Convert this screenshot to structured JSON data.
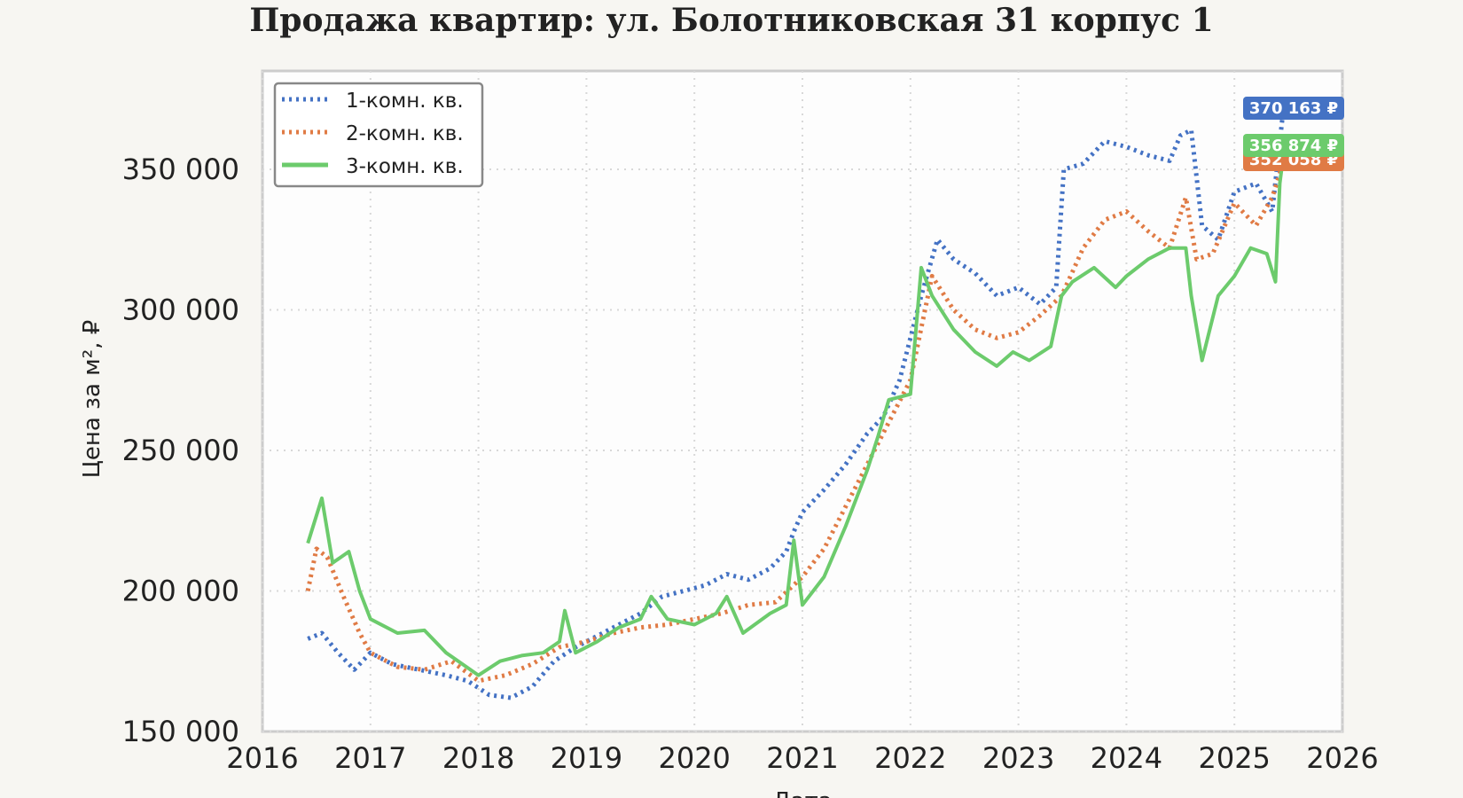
{
  "chart_data": {
    "type": "line",
    "title": "Продажа квартир: ул. Болотниковская 31 корпус 1",
    "xlabel": "Дата",
    "ylabel": "Цена за м², ₽",
    "xlim": [
      2016,
      2026
    ],
    "ylim": [
      150000,
      385000
    ],
    "x_ticks": [
      "2016",
      "2017",
      "2018",
      "2019",
      "2020",
      "2021",
      "2022",
      "2023",
      "2024",
      "2025",
      "2026"
    ],
    "y_ticks": [
      "150 000",
      "200 000",
      "250 000",
      "300 000",
      "350 000"
    ],
    "y_tick_values": [
      150000,
      200000,
      250000,
      300000,
      350000
    ],
    "grid": true,
    "legend_position": "top-left",
    "series": [
      {
        "name": "1-комн. кв.",
        "color": "#4472c4",
        "style": "dotted",
        "last_value_label": "370 163 ₽",
        "x": [
          2016.42,
          2016.55,
          2016.7,
          2016.85,
          2017.0,
          2017.2,
          2017.45,
          2017.7,
          2017.9,
          2018.1,
          2018.3,
          2018.5,
          2018.7,
          2018.9,
          2019.1,
          2019.3,
          2019.5,
          2019.7,
          2019.9,
          2020.1,
          2020.3,
          2020.5,
          2020.7,
          2020.85,
          2020.93,
          2021.0,
          2021.2,
          2021.4,
          2021.6,
          2021.75,
          2021.9,
          2022.0,
          2022.1,
          2022.25,
          2022.4,
          2022.6,
          2022.8,
          2023.0,
          2023.2,
          2023.35,
          2023.42,
          2023.6,
          2023.8,
          2024.0,
          2024.2,
          2024.4,
          2024.5,
          2024.6,
          2024.7,
          2024.85,
          2025.0,
          2025.2,
          2025.35,
          2025.45
        ],
        "values": [
          183000,
          185000,
          178000,
          172000,
          178000,
          174000,
          172000,
          170000,
          168000,
          163000,
          162000,
          166000,
          175000,
          180000,
          184000,
          188000,
          192000,
          198000,
          200000,
          202000,
          206000,
          204000,
          208000,
          214000,
          222000,
          228000,
          236000,
          245000,
          256000,
          262000,
          275000,
          290000,
          305000,
          325000,
          318000,
          313000,
          305000,
          308000,
          302000,
          308000,
          350000,
          352000,
          360000,
          358000,
          355000,
          353000,
          362000,
          364000,
          330000,
          325000,
          342000,
          345000,
          335000,
          370163
        ]
      },
      {
        "name": "2-комн. кв.",
        "color": "#e07b45",
        "style": "dotted",
        "last_value_label": "352 058 ₽",
        "x": [
          2016.42,
          2016.5,
          2016.6,
          2016.75,
          2016.9,
          2017.0,
          2017.25,
          2017.5,
          2017.75,
          2018.0,
          2018.25,
          2018.5,
          2018.75,
          2019.0,
          2019.25,
          2019.5,
          2019.75,
          2020.0,
          2020.25,
          2020.5,
          2020.75,
          2021.0,
          2021.2,
          2021.4,
          2021.6,
          2021.8,
          2022.0,
          2022.2,
          2022.4,
          2022.6,
          2022.8,
          2023.0,
          2023.2,
          2023.4,
          2023.6,
          2023.8,
          2024.0,
          2024.2,
          2024.4,
          2024.55,
          2024.65,
          2024.8,
          2025.0,
          2025.2,
          2025.35,
          2025.45
        ],
        "values": [
          200000,
          215000,
          212000,
          198000,
          185000,
          178000,
          173000,
          172000,
          175000,
          168000,
          170000,
          174000,
          180000,
          182000,
          185000,
          187000,
          188000,
          190000,
          192000,
          195000,
          196000,
          205000,
          215000,
          230000,
          245000,
          260000,
          275000,
          312000,
          300000,
          293000,
          290000,
          292000,
          298000,
          305000,
          322000,
          332000,
          335000,
          328000,
          322000,
          340000,
          318000,
          320000,
          338000,
          330000,
          340000,
          352058
        ]
      },
      {
        "name": "3-комн. кв.",
        "color": "#6ccb6c",
        "style": "solid",
        "last_value_label": "356 874 ₽",
        "x": [
          2016.42,
          2016.55,
          2016.65,
          2016.8,
          2016.9,
          2017.0,
          2017.25,
          2017.5,
          2017.7,
          2018.0,
          2018.2,
          2018.4,
          2018.6,
          2018.75,
          2018.8,
          2018.9,
          2019.1,
          2019.3,
          2019.5,
          2019.6,
          2019.75,
          2020.0,
          2020.2,
          2020.3,
          2020.45,
          2020.7,
          2020.85,
          2020.92,
          2021.0,
          2021.2,
          2021.4,
          2021.6,
          2021.7,
          2021.8,
          2022.0,
          2022.1,
          2022.2,
          2022.4,
          2022.6,
          2022.8,
          2022.95,
          2023.1,
          2023.3,
          2023.4,
          2023.5,
          2023.7,
          2023.9,
          2024.0,
          2024.2,
          2024.4,
          2024.55,
          2024.6,
          2024.7,
          2024.85,
          2025.0,
          2025.15,
          2025.3,
          2025.38,
          2025.42,
          2025.46
        ],
        "values": [
          217000,
          233000,
          210000,
          214000,
          200000,
          190000,
          185000,
          186000,
          178000,
          170000,
          175000,
          177000,
          178000,
          182000,
          193000,
          178000,
          182000,
          187000,
          190000,
          198000,
          190000,
          188000,
          192000,
          198000,
          185000,
          192000,
          195000,
          218000,
          195000,
          205000,
          223000,
          243000,
          255000,
          268000,
          270000,
          315000,
          305000,
          293000,
          285000,
          280000,
          285000,
          282000,
          287000,
          305000,
          310000,
          315000,
          308000,
          312000,
          318000,
          322000,
          322000,
          305000,
          282000,
          305000,
          312000,
          322000,
          320000,
          310000,
          345000,
          356874
        ]
      }
    ]
  }
}
